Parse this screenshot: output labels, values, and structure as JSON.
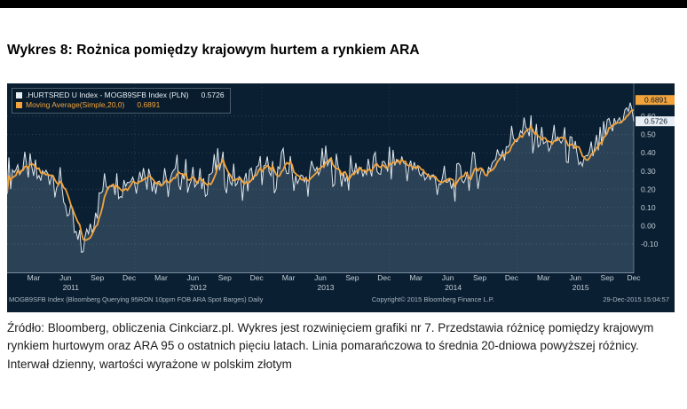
{
  "page": {
    "title": "Wykres 8: Rożnica pomiędzy krajowym hurtem a rynkiem ARA",
    "caption": "Źródło: Bloomberg, obliczenia Cinkciarz.pl. Wykres jest rozwinięciem grafiki nr 7. Przedstawia różnicę pomiędzy krajowym rynkiem hurtowym oraz ARA 95 o ostatnich pięciu latach. Linia pomarańczowa to średnia 20-dniowa powyższej różnicy. Interwał dzienny, wartości wyrażone w polskim złotym"
  },
  "chart": {
    "legend": [
      {
        "label": ".HURTSRED U Index - MOGB9SFB Index (PLN)",
        "value": "0.5726"
      },
      {
        "label": "Moving Average(Simple,20,0)",
        "value": "0.6891"
      }
    ],
    "footer": {
      "left": "MOGB9SFB Index (Bloomberg Querying 95RON 10ppm FOB ARA Spot Barges)  Daily",
      "center": "Copyright© 2015 Bloomberg Finance L.P.",
      "right": "29-Dec-2015 15:04:57"
    }
  },
  "chart_data": {
    "type": "line",
    "title": "Różnica pomiędzy krajowym hurtem a rynkiem ARA (PLN)",
    "x_range": [
      "2011-01",
      "2015-12"
    ],
    "x_axis": {
      "month_labels": [
        "Mar",
        "Jun",
        "Sep",
        "Dec"
      ],
      "years": [
        "2011",
        "2012",
        "2013",
        "2014",
        "2015"
      ]
    },
    "ylim": [
      -0.26,
      0.78
    ],
    "yticks": [
      0.6,
      0.5,
      0.4,
      0.3,
      0.2,
      0.1,
      0.0,
      -0.1
    ],
    "grid": true,
    "legend_position": "top-left",
    "noise_amplitude": 0.055,
    "ma_window": 6,
    "colors": {
      "bg": "#0a2032",
      "area_fill": "rgba(130,155,180,0.28)",
      "grid": "rgba(190,205,220,0.22)"
    },
    "series": [
      {
        "name": ".HURTSRED U Index - MOGB9SFB Index (PLN)",
        "color": "#dfe7ee",
        "last": 0.5726,
        "monthly_values": [
          0.28,
          0.32,
          0.3,
          0.26,
          0.3,
          0.22,
          0.02,
          -0.14,
          0.04,
          0.2,
          0.26,
          0.24,
          0.27,
          0.3,
          0.26,
          0.22,
          0.3,
          0.27,
          0.21,
          0.28,
          0.33,
          0.26,
          0.23,
          0.28,
          0.31,
          0.27,
          0.33,
          0.28,
          0.24,
          0.3,
          0.34,
          0.31,
          0.27,
          0.32,
          0.29,
          0.31,
          0.33,
          0.36,
          0.32,
          0.29,
          0.26,
          0.24,
          0.22,
          0.27,
          0.31,
          0.29,
          0.37,
          0.45,
          0.49,
          0.52,
          0.47,
          0.44,
          0.48,
          0.41,
          0.34,
          0.38,
          0.46,
          0.54,
          0.61,
          0.66
        ]
      },
      {
        "name": "Moving Average(Simple,20,0)",
        "color": "#f2a33c",
        "last": 0.6891,
        "derived": "sma20_of_series_0"
      }
    ],
    "last_badges": [
      {
        "value": 0.6891,
        "color": "#f2a33c"
      },
      {
        "value": 0.5726,
        "color": "#e8eef4"
      }
    ]
  }
}
